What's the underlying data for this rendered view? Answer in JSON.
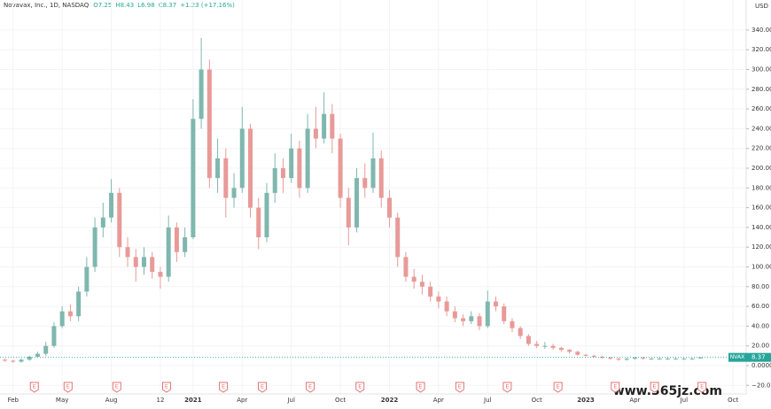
{
  "header": {
    "title": "Novavax, Inc., 1D, NASDAQ",
    "open": "O7.25",
    "high": "H8.43",
    "low": "L6.98",
    "close": "C8.37",
    "change": "+1.23 (+17.16%)"
  },
  "currency": "USD",
  "watermark": "www.365jz.com",
  "chart_data": {
    "type": "candlestick",
    "up_color": "#7fb7ae",
    "down_color": "#e89a98",
    "x": [
      0.5,
      1,
      1.5,
      2,
      2.5,
      3,
      3.5,
      4,
      4.5,
      5,
      5.5,
      6,
      6.5,
      7,
      7.5,
      8,
      8.5,
      9,
      9.5,
      10,
      10.5,
      11,
      11.5,
      12,
      12.5,
      13,
      13.5,
      14,
      14.5,
      15,
      15.5,
      16,
      16.5,
      17,
      17.5,
      18,
      18.5,
      19,
      19.5,
      20,
      20.5,
      21,
      21.5,
      22,
      22.5,
      23,
      23.5,
      24,
      24.5,
      25,
      25.5,
      26,
      26.5,
      27,
      27.5,
      28,
      28.5,
      29,
      29.5,
      30,
      30.5,
      31,
      31.5,
      32,
      32.5,
      33,
      33.5,
      34,
      34.5,
      35,
      35.5,
      36,
      36.5,
      37,
      37.5,
      38,
      38.5,
      39,
      39.5,
      40,
      40.5,
      41,
      41.5,
      42,
      42.5,
      43
    ],
    "open": [
      6,
      5,
      4,
      6,
      9,
      12,
      20,
      40,
      55,
      50,
      75,
      100,
      140,
      150,
      175,
      120,
      110,
      100,
      110,
      95,
      90,
      140,
      115,
      130,
      250,
      300,
      190,
      210,
      170,
      180,
      240,
      160,
      130,
      175,
      200,
      190,
      220,
      180,
      240,
      230,
      255,
      230,
      170,
      140,
      190,
      180,
      210,
      170,
      150,
      110,
      90,
      85,
      80,
      70,
      65,
      55,
      48,
      45,
      50,
      40,
      65,
      60,
      45,
      38,
      30,
      22,
      20,
      20,
      18,
      16,
      14,
      11,
      10,
      9,
      8,
      7,
      6,
      7,
      8,
      7,
      7,
      7,
      7,
      7,
      7,
      7.25
    ],
    "high": [
      7,
      6,
      7,
      10,
      14,
      24,
      44,
      60,
      62,
      80,
      110,
      150,
      165,
      189,
      180,
      130,
      118,
      120,
      115,
      100,
      152,
      145,
      140,
      270,
      332,
      310,
      230,
      220,
      195,
      262,
      245,
      170,
      185,
      215,
      210,
      235,
      228,
      255,
      262,
      277,
      265,
      235,
      180,
      200,
      205,
      236,
      218,
      178,
      155,
      115,
      98,
      92,
      85,
      75,
      70,
      60,
      52,
      55,
      53,
      76,
      70,
      63,
      48,
      40,
      32,
      25,
      24,
      22,
      19,
      17,
      15,
      12,
      11,
      10,
      9,
      8,
      8,
      9,
      9,
      8,
      8,
      8,
      8,
      8,
      8,
      8.43
    ],
    "low": [
      4,
      3,
      3,
      5,
      8,
      10,
      18,
      38,
      45,
      45,
      70,
      95,
      130,
      145,
      110,
      100,
      85,
      92,
      88,
      78,
      85,
      105,
      110,
      128,
      240,
      180,
      175,
      150,
      160,
      175,
      150,
      118,
      125,
      165,
      175,
      185,
      170,
      175,
      220,
      225,
      215,
      160,
      122,
      135,
      170,
      175,
      160,
      140,
      100,
      85,
      78,
      72,
      65,
      58,
      50,
      44,
      40,
      42,
      36,
      38,
      55,
      42,
      34,
      27,
      20,
      18,
      17,
      16,
      14,
      12,
      10,
      9,
      8,
      7,
      6,
      5,
      5,
      6,
      6,
      6,
      6,
      6,
      6,
      6,
      6,
      6.98
    ],
    "close": [
      5,
      4,
      6,
      9,
      12,
      20,
      40,
      55,
      50,
      75,
      100,
      140,
      150,
      175,
      120,
      110,
      100,
      110,
      95,
      90,
      140,
      115,
      130,
      250,
      300,
      190,
      210,
      170,
      180,
      240,
      160,
      130,
      175,
      200,
      190,
      220,
      180,
      240,
      230,
      255,
      230,
      170,
      140,
      190,
      180,
      210,
      170,
      150,
      110,
      90,
      85,
      80,
      70,
      65,
      55,
      48,
      45,
      50,
      40,
      65,
      60,
      45,
      38,
      30,
      22,
      20,
      20,
      18,
      16,
      14,
      11,
      10,
      9,
      8,
      7,
      6,
      7,
      8,
      7,
      7,
      7,
      7,
      7,
      7,
      7,
      8.37
    ],
    "xlim": [
      0.2,
      45.8
    ],
    "xticks": [
      {
        "value": 1,
        "label": "Feb"
      },
      {
        "value": 4,
        "label": "May"
      },
      {
        "value": 7,
        "label": "Aug"
      },
      {
        "value": 10,
        "label": "12"
      },
      {
        "value": 12,
        "label": "2021"
      },
      {
        "value": 15,
        "label": "Apr"
      },
      {
        "value": 18,
        "label": "Jul"
      },
      {
        "value": 21,
        "label": "Oct"
      },
      {
        "value": 24,
        "label": "2022"
      },
      {
        "value": 27,
        "label": "Apr"
      },
      {
        "value": 30,
        "label": "Jul"
      },
      {
        "value": 33,
        "label": "Oct"
      },
      {
        "value": 36,
        "label": "2023"
      },
      {
        "value": 39,
        "label": "Apr"
      },
      {
        "value": 42,
        "label": "Jul"
      },
      {
        "value": 45,
        "label": "Oct"
      }
    ],
    "ylim": [
      -28.7,
      370.4
    ],
    "yticks": [
      {
        "value": -20,
        "label": "−20.00"
      },
      {
        "value": 0,
        "label": "0.0000"
      },
      {
        "value": 20,
        "label": "20.00"
      },
      {
        "value": 40,
        "label": "40.00"
      },
      {
        "value": 60,
        "label": "60.00"
      },
      {
        "value": 80,
        "label": "80.00"
      },
      {
        "value": 100,
        "label": "100.00"
      },
      {
        "value": 120,
        "label": "120.00"
      },
      {
        "value": 140,
        "label": "140.00"
      },
      {
        "value": 160,
        "label": "160.00"
      },
      {
        "value": 180,
        "label": "180.00"
      },
      {
        "value": 200,
        "label": "200.00"
      },
      {
        "value": 220,
        "label": "220.00"
      },
      {
        "value": 240,
        "label": "240.00"
      },
      {
        "value": 260,
        "label": "260.00"
      },
      {
        "value": 280,
        "label": "280.00"
      },
      {
        "value": 300,
        "label": "300.00"
      },
      {
        "value": 320,
        "label": "320.00"
      },
      {
        "value": 340,
        "label": "340.00"
      }
    ],
    "last_price": {
      "symbol": "NVAX",
      "value": 8.37,
      "color": "#26a69a"
    },
    "earnings": {
      "label": "E",
      "color": "#e57373",
      "x": [
        2.3,
        4.36,
        7.34,
        10.38,
        13.85,
        16.23,
        19.16,
        22.2,
        25.9,
        28.3,
        31.2,
        34.3,
        37.8,
        40.2,
        43.1
      ]
    }
  }
}
